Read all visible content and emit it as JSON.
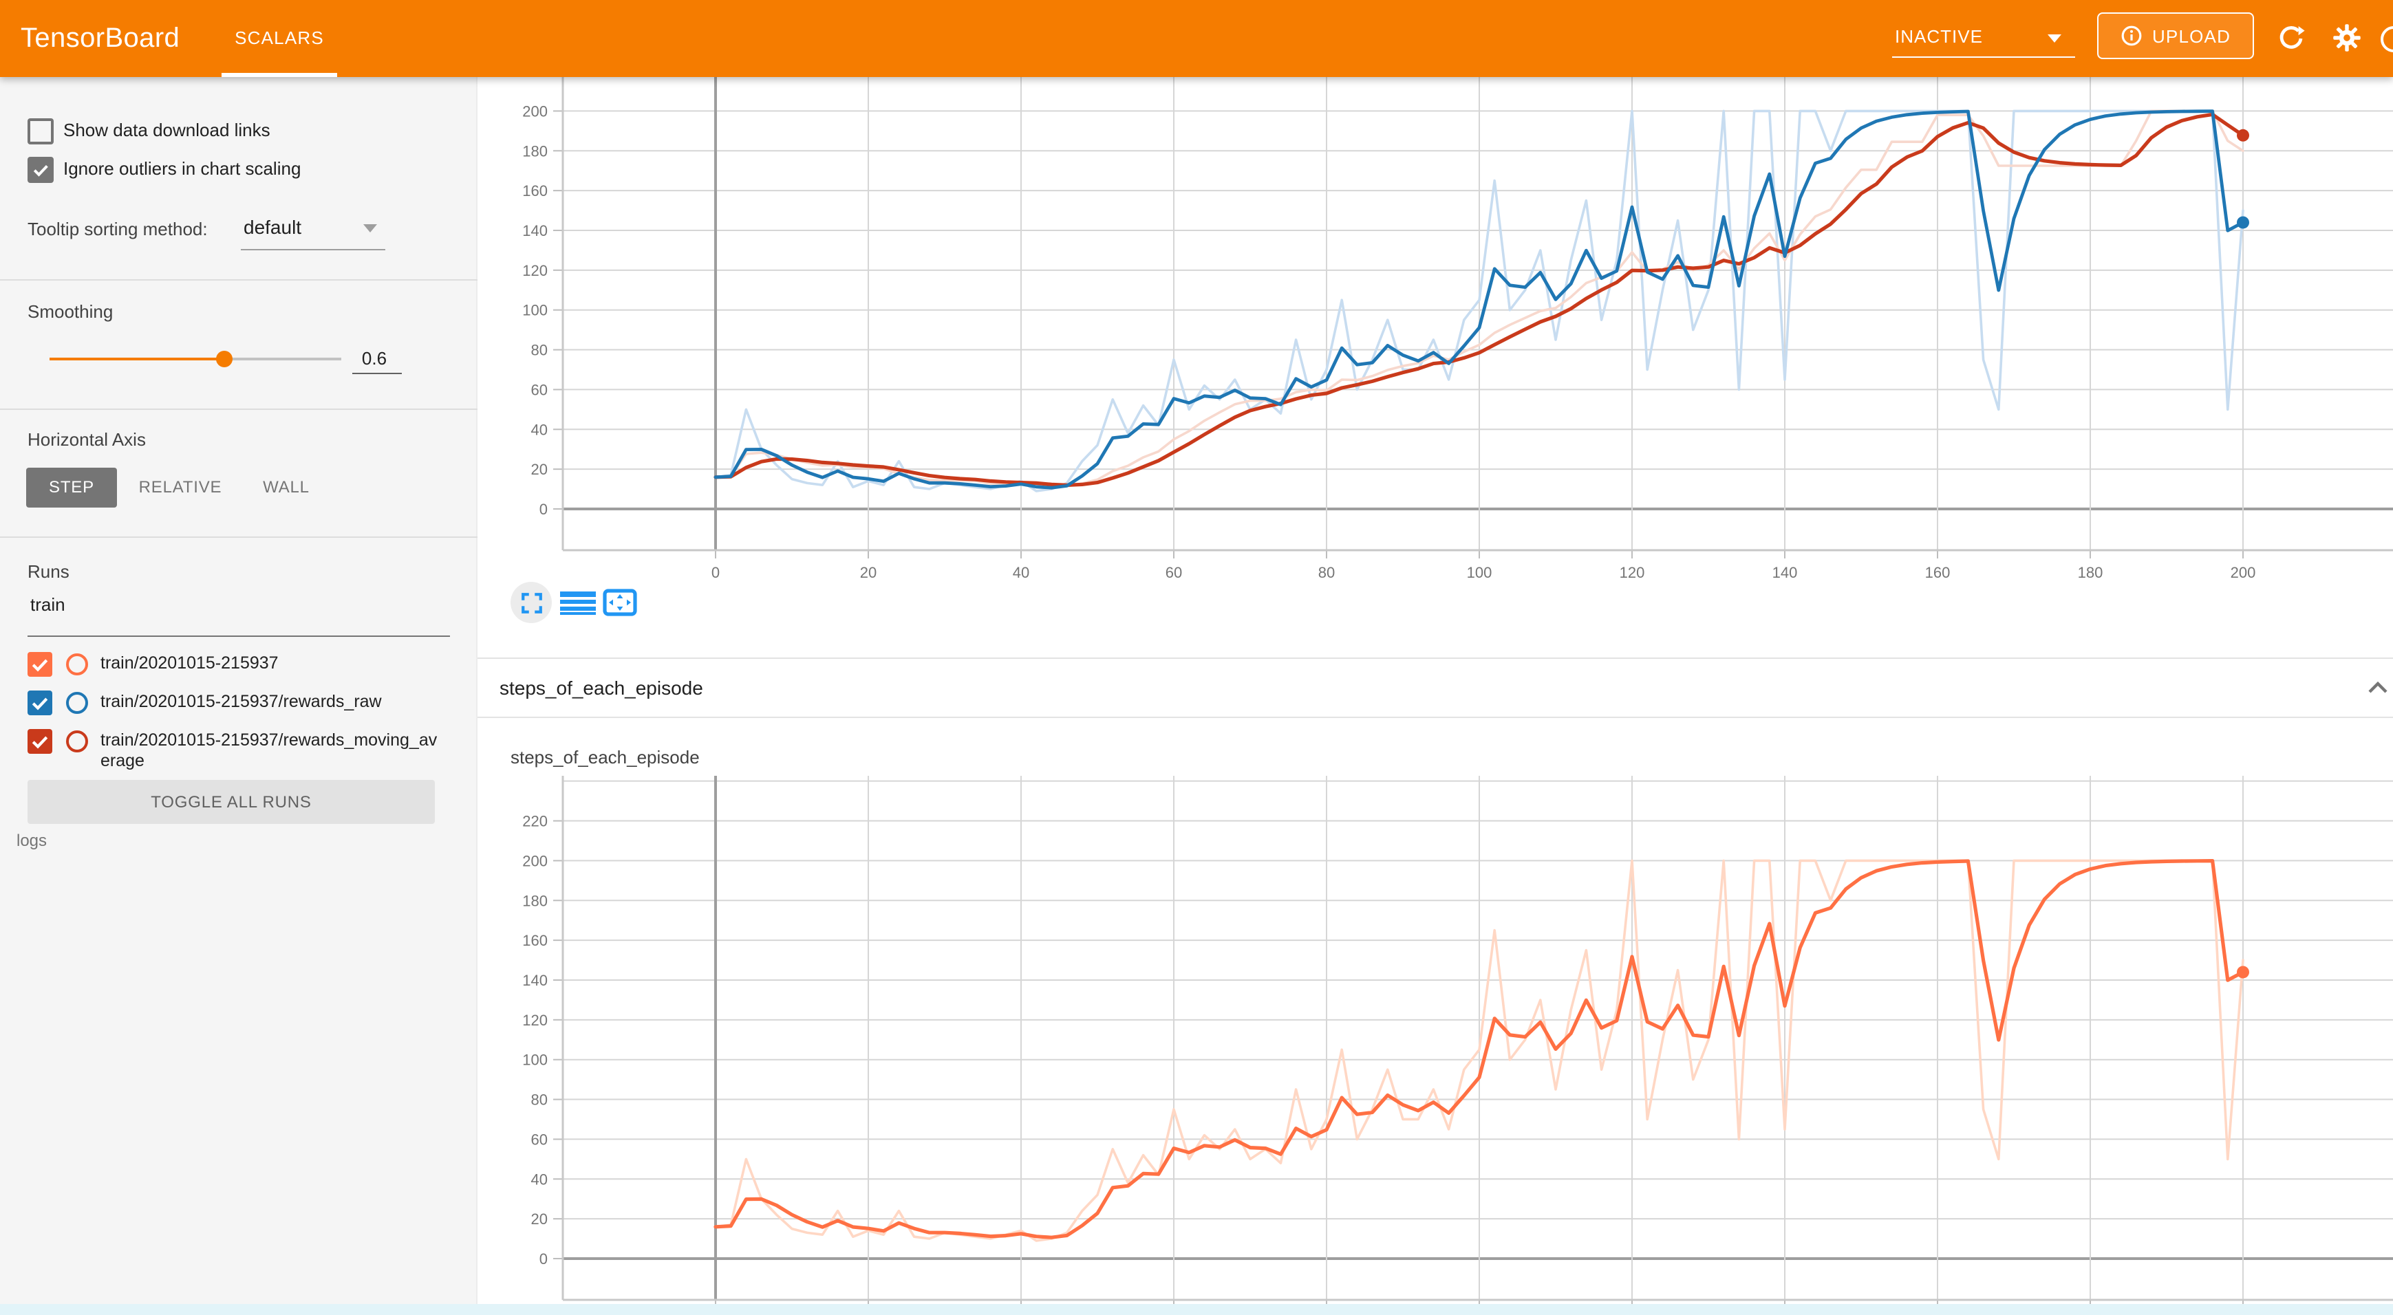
{
  "header": {
    "title": "TensorBoard",
    "tab": "SCALARS",
    "status": "INACTIVE",
    "upload_label": "UPLOAD",
    "colors": {
      "bar": "#f57c00",
      "upload_bg": "#f9891b"
    }
  },
  "sidebar": {
    "checkboxes": [
      {
        "label": "Show data download links",
        "checked": false
      },
      {
        "label": "Ignore outliers in chart scaling",
        "checked": true
      }
    ],
    "tooltip_sorting": {
      "label": "Tooltip sorting method:",
      "value": "default"
    },
    "smoothing": {
      "label": "Smoothing",
      "value": "0.6"
    },
    "horizontal_axis": {
      "label": "Horizontal Axis",
      "options": [
        "STEP",
        "RELATIVE",
        "WALL"
      ],
      "selected": "STEP"
    },
    "runs": {
      "label": "Runs",
      "filter_value": "train",
      "items": [
        {
          "name": "train/20201015-215937",
          "color": "#ff7043",
          "checked": true
        },
        {
          "name": "train/20201015-215937/rewards_raw",
          "color": "#1f77b4",
          "checked": true
        },
        {
          "name": "train/20201015-215937/rewards_moving_average",
          "color": "#c93a1b",
          "checked": true
        }
      ],
      "toggle_label": "TOGGLE ALL RUNS",
      "footer": "logs"
    }
  },
  "main": {
    "section_title": "steps_of_each_episode",
    "card_title": "steps_of_each_episode"
  },
  "chart_data": {
    "type": "line",
    "title": "steps_of_each_episode",
    "smoothing": 0.6,
    "x_start": 0,
    "x_step": 2,
    "x_ticks": [
      0,
      20,
      40,
      60,
      80,
      100,
      120,
      140,
      160,
      180,
      200
    ],
    "top_chart": {
      "y_ticks": [
        0,
        20,
        40,
        60,
        80,
        100,
        120,
        140,
        160,
        180,
        200
      ],
      "series_visible": [
        "rewards_raw smoothed + raw",
        "rewards_moving_average smoothed + raw"
      ],
      "end_dots": {
        "rewards_raw": 144,
        "rewards_moving_average": 188
      }
    },
    "bottom_chart": {
      "y_ticks": [
        0,
        20,
        40,
        60,
        80,
        100,
        120,
        140,
        160,
        180,
        200,
        220
      ],
      "series_visible": [
        "train smoothed + raw"
      ],
      "end_dots": {
        "train": 144
      }
    },
    "raw": [
      16,
      17,
      50,
      30,
      22,
      15,
      13,
      12,
      24,
      11,
      14,
      12,
      24,
      11,
      10,
      13,
      12,
      11,
      10,
      12,
      14,
      9,
      10,
      13,
      24,
      32,
      55,
      38,
      52,
      42,
      75,
      50,
      62,
      55,
      65,
      50,
      55,
      48,
      85,
      55,
      70,
      105,
      60,
      75,
      95,
      70,
      70,
      85,
      65,
      95,
      105,
      165,
      100,
      110,
      130,
      85,
      125,
      155,
      95,
      125,
      200,
      70,
      110,
      145,
      90,
      110,
      200,
      60,
      200,
      200,
      65,
      200,
      200,
      180,
      200,
      200,
      200,
      200,
      200,
      200,
      200,
      200,
      200,
      75,
      50,
      200,
      200,
      200,
      200,
      200,
      200,
      200,
      200,
      200,
      200,
      200,
      200,
      200,
      200,
      50,
      150
    ],
    "colors": {
      "grid": "#d6d6d6",
      "axis_dark": "#9e9e9e",
      "raw_faint_blue": "#c7dcf0",
      "raw_faint_pink": "#f7d8cd",
      "raw_faint_orange": "#ffd7c4"
    }
  }
}
